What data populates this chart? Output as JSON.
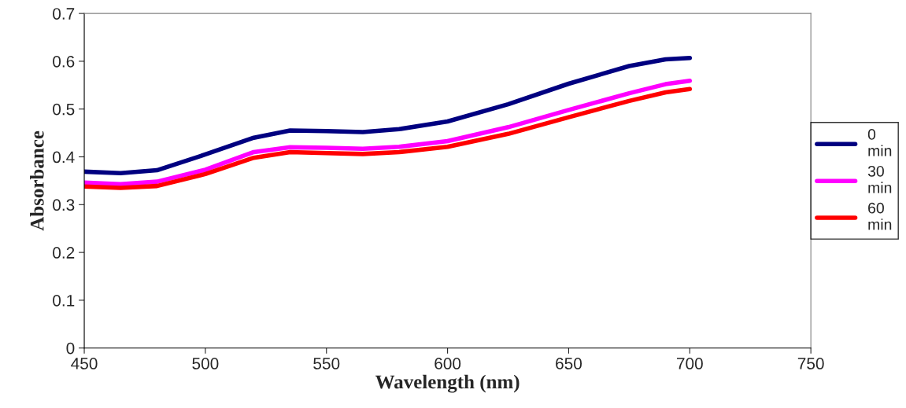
{
  "chart_data": {
    "type": "line",
    "xlabel": "Wavelength (nm)",
    "ylabel": "Absorbance",
    "xlim": [
      450,
      750
    ],
    "xticks": [
      450,
      500,
      550,
      600,
      650,
      700,
      750
    ],
    "ylim": [
      0,
      0.7
    ],
    "yticks": [
      0,
      0.1,
      0.2,
      0.3,
      0.4,
      0.5,
      0.6,
      0.7
    ],
    "x": [
      450,
      465,
      480,
      500,
      520,
      535,
      550,
      565,
      580,
      600,
      625,
      650,
      675,
      690,
      700
    ],
    "series": [
      {
        "name": "0 min",
        "color": "#000080",
        "values": [
          0.369,
          0.366,
          0.372,
          0.405,
          0.44,
          0.455,
          0.454,
          0.452,
          0.458,
          0.474,
          0.51,
          0.553,
          0.59,
          0.604,
          0.607
        ]
      },
      {
        "name": "30 min",
        "color": "#ff00ff",
        "values": [
          0.346,
          0.343,
          0.348,
          0.373,
          0.41,
          0.42,
          0.419,
          0.417,
          0.421,
          0.433,
          0.462,
          0.498,
          0.533,
          0.552,
          0.559
        ]
      },
      {
        "name": "60 min",
        "color": "#ff0000",
        "values": [
          0.338,
          0.335,
          0.339,
          0.364,
          0.398,
          0.41,
          0.408,
          0.406,
          0.41,
          0.421,
          0.448,
          0.483,
          0.517,
          0.535,
          0.542
        ]
      }
    ],
    "grid": false,
    "legend": "right",
    "marker": "none",
    "line_style": "solid"
  }
}
